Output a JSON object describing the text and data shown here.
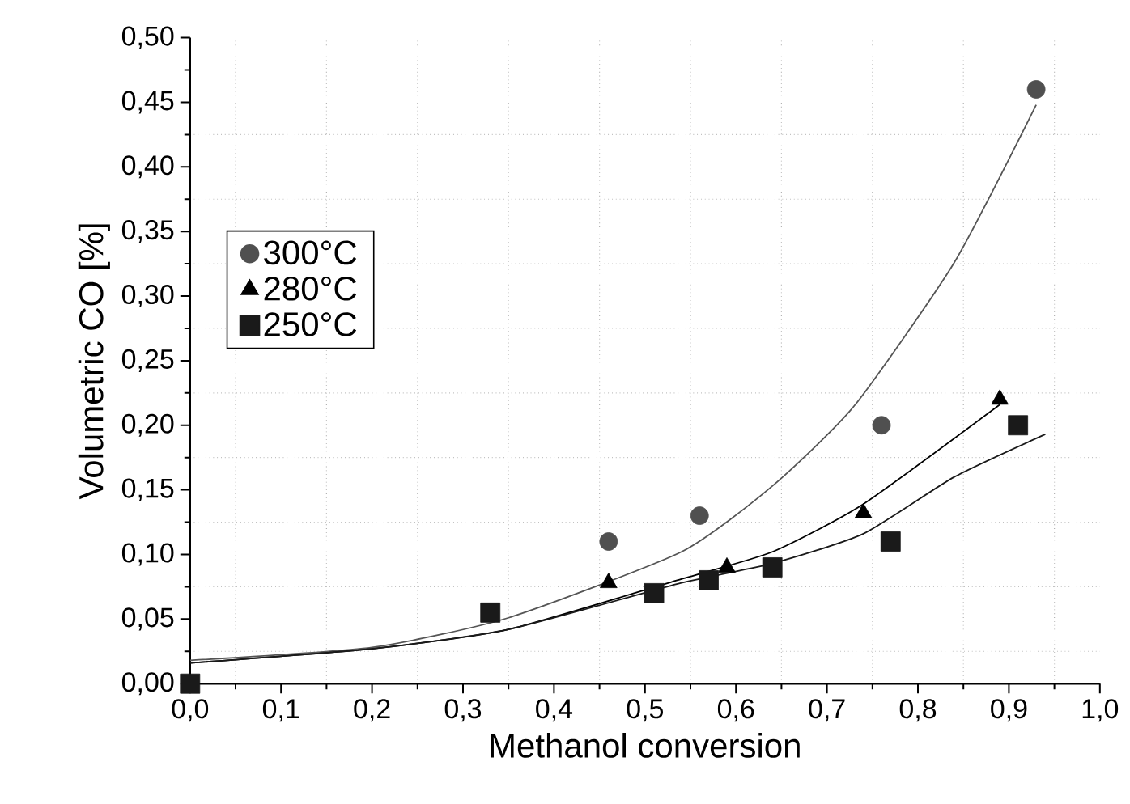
{
  "chart_data": {
    "type": "scatter",
    "xlabel": "Methanol conversion",
    "ylabel": "Volumetric CO [%]",
    "xlim": [
      0,
      1
    ],
    "ylim": [
      0,
      0.5
    ],
    "xticks": [
      {
        "value": 0,
        "label": "0,0"
      },
      {
        "value": 0.1,
        "label": "0,1"
      },
      {
        "value": 0.2,
        "label": "0,2"
      },
      {
        "value": 0.3,
        "label": "0,3"
      },
      {
        "value": 0.4,
        "label": "0,4"
      },
      {
        "value": 0.5,
        "label": "0,5"
      },
      {
        "value": 0.6,
        "label": "0,6"
      },
      {
        "value": 0.7,
        "label": "0,7"
      },
      {
        "value": 0.8,
        "label": "0,8"
      },
      {
        "value": 0.9,
        "label": "0,9"
      },
      {
        "value": 1,
        "label": "1,0"
      }
    ],
    "yticks": [
      {
        "value": 0,
        "label": "0,00"
      },
      {
        "value": 0.05,
        "label": "0,05"
      },
      {
        "value": 0.1,
        "label": "0,10"
      },
      {
        "value": 0.15,
        "label": "0,15"
      },
      {
        "value": 0.2,
        "label": "0,20"
      },
      {
        "value": 0.25,
        "label": "0,25"
      },
      {
        "value": 0.3,
        "label": "0,30"
      },
      {
        "value": 0.35,
        "label": "0,35"
      },
      {
        "value": 0.4,
        "label": "0,40"
      },
      {
        "value": 0.45,
        "label": "0,45"
      },
      {
        "value": 0.5,
        "label": "0,50"
      }
    ],
    "grid": true,
    "legend": "left",
    "series": [
      {
        "name": "300°C",
        "marker": "circle",
        "color": "#505050",
        "x": [
          0.46,
          0.56,
          0.76,
          0.93
        ],
        "values": [
          0.11,
          0.13,
          0.2,
          0.46
        ]
      },
      {
        "name": "280°C",
        "marker": "triangle",
        "color": "#000000",
        "x": [
          0.46,
          0.59,
          0.74,
          0.89
        ],
        "values": [
          0.078,
          0.09,
          0.132,
          0.22
        ]
      },
      {
        "name": "250°C",
        "marker": "square",
        "color": "#1a1a1a",
        "x": [
          0,
          0.33,
          0.51,
          0.57,
          0.64,
          0.77,
          0.91
        ],
        "values": [
          0,
          0.055,
          0.07,
          0.08,
          0.09,
          0.11,
          0.2
        ]
      },
      {
        "type": "line",
        "color": "#555555",
        "x": [
          0,
          0.2,
          0.35,
          0.54,
          0.64,
          0.73,
          0.84,
          0.93
        ],
        "values": [
          0.018,
          0.028,
          0.051,
          0.102,
          0.153,
          0.215,
          0.326,
          0.448
        ]
      },
      {
        "type": "line",
        "color": "#000000",
        "x": [
          0,
          0.2,
          0.35,
          0.54,
          0.64,
          0.74,
          0.89
        ],
        "values": [
          0.016,
          0.027,
          0.042,
          0.081,
          0.102,
          0.139,
          0.216
        ]
      },
      {
        "type": "line",
        "color": "#1a1a1a",
        "x": [
          0,
          0.2,
          0.35,
          0.54,
          0.64,
          0.74,
          0.84,
          0.94
        ],
        "values": [
          0.016,
          0.027,
          0.042,
          0.078,
          0.093,
          0.116,
          0.16,
          0.193
        ]
      }
    ]
  }
}
